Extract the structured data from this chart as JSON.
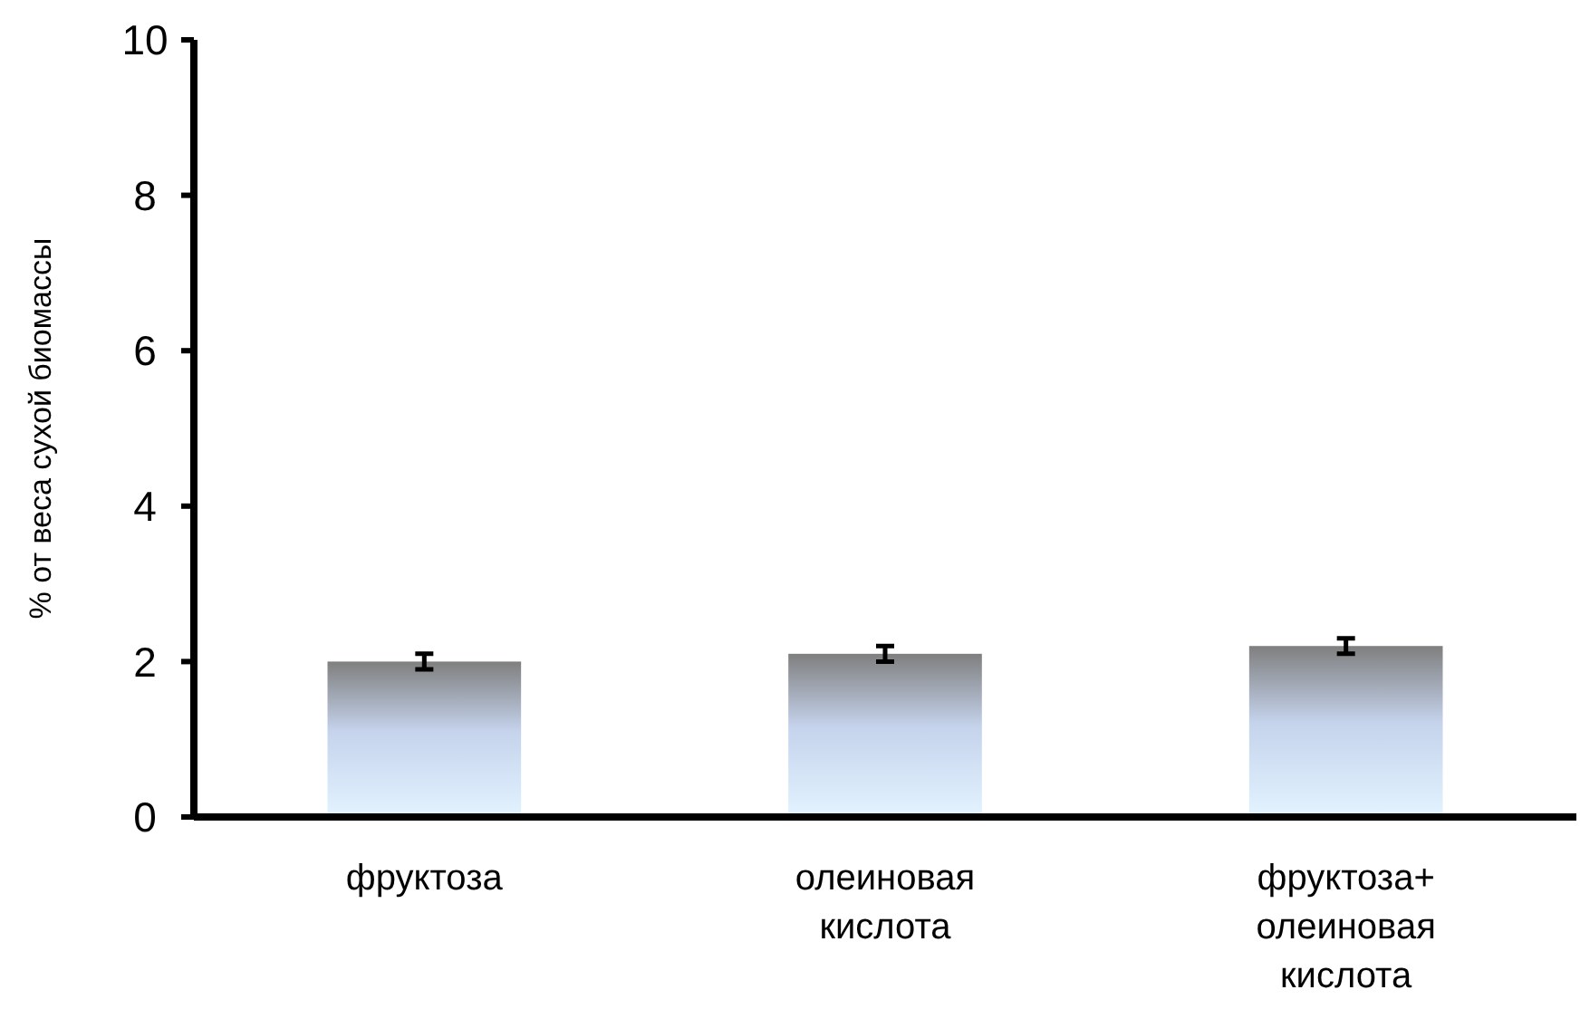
{
  "chart_data": {
    "type": "bar",
    "ylabel": "% от веса сухой биомассы",
    "categories": [
      "фруктоза",
      "олеиновая кислота",
      "фруктоза+ олеиновая кислота"
    ],
    "values": [
      2.0,
      2.1,
      2.2
    ],
    "errors": [
      0.1,
      0.1,
      0.1
    ],
    "color": "#c5d3ec",
    "ylim": [
      0,
      10
    ],
    "yticks": [
      0,
      2,
      4,
      6,
      8,
      10
    ],
    "grid": false
  }
}
